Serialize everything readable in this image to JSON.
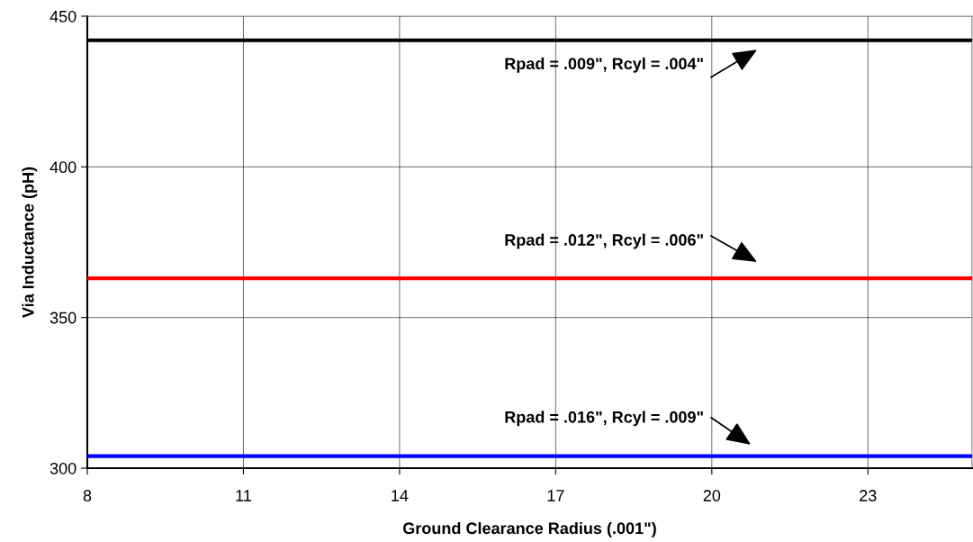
{
  "chart_data": {
    "type": "line",
    "xlabel": "Ground Clearance Radius (.001\")",
    "ylabel": "Via Inductance (pH)",
    "x": [
      8,
      25
    ],
    "series": [
      {
        "color": "#000000",
        "values": [
          442,
          442
        ]
      },
      {
        "color": "#ff0000",
        "values": [
          363,
          363
        ]
      },
      {
        "color": "#0000ff",
        "values": [
          304,
          304
        ]
      }
    ],
    "annotations": [
      "Rpad = .009\", Rcyl = .004\"",
      "Rpad = .012\", Rcyl = .006\"",
      "Rpad = .016\", Rcyl = .009\""
    ],
    "xlim": [
      8,
      25
    ],
    "xticks": [
      8,
      11,
      14,
      17,
      20,
      23
    ],
    "ylim": [
      300,
      450
    ],
    "yticks": [
      300,
      350,
      400,
      450
    ],
    "grid": true,
    "marker": "none",
    "line_style": "solid"
  }
}
